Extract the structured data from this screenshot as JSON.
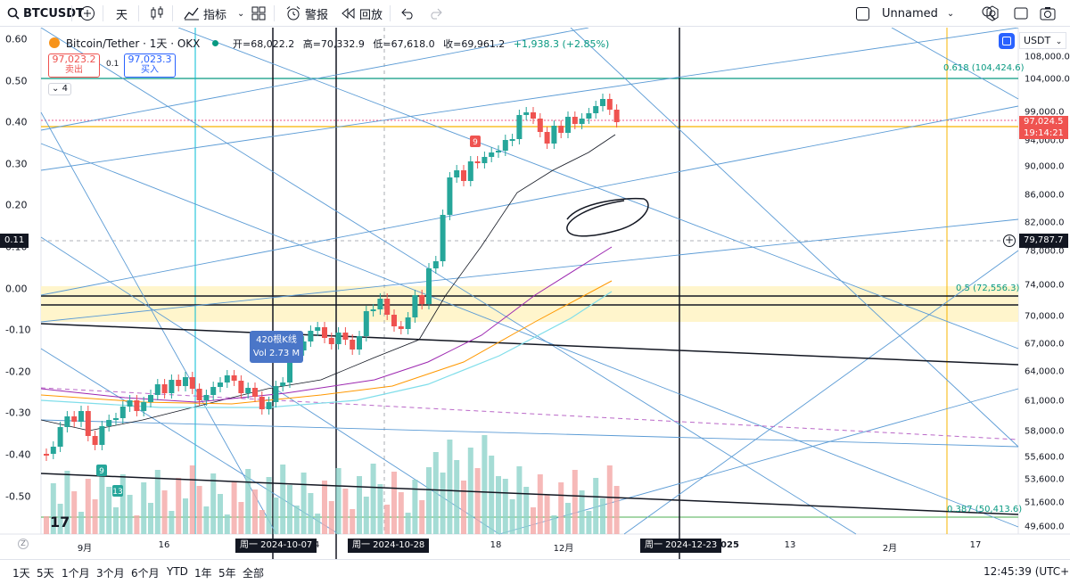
{
  "header": {
    "symbol": "BTCUSDT",
    "interval": "天",
    "indicators_label": "指标",
    "alert_label": "警报",
    "replay_label": "回放",
    "layout_name": "Unnamed"
  },
  "legend": {
    "title": "Bitcoin/Tether · 1天 · OKX",
    "open": "开=68,022.2",
    "high": "高=70,332.9",
    "low": "低=67,618.0",
    "close": "收=69,961.2",
    "change": "+1,938.3 (+2.85%)",
    "sell_price": "97,023.2",
    "sell_label": "卖出",
    "spread": "0.1",
    "buy_price": "97,023.3",
    "buy_label": "买入",
    "indicator_count": "4"
  },
  "tooltip": {
    "bars": "420根K线",
    "vol": "Vol 2.73 M"
  },
  "currency": "USDT",
  "left_axis": [
    "0.60",
    "0.50",
    "0.40",
    "0.30",
    "0.20",
    "0.10",
    "0.00",
    "-0.10",
    "-0.20",
    "-0.30",
    "-0.40",
    "-0.50"
  ],
  "left_cursor": "0.11",
  "right_axis": [
    "108,000.0",
    "104,000.0",
    "99,000.0",
    "94,000.0",
    "90,000.0",
    "86,000.0",
    "82,000.0",
    "78,000.0",
    "74,000.0",
    "70,000.0",
    "67,000.0",
    "64,000.0",
    "61,000.0",
    "58,000.0",
    "55,600.0",
    "53,600.0",
    "51,600.0",
    "49,600.0"
  ],
  "price_tag": {
    "price": "97,024.5",
    "countdown": "19:14:21"
  },
  "cursor_price": "79,787.7",
  "fib": {
    "f618": "0.618 (104,424.6)",
    "f05": "0.5 (72,556.3)",
    "f0387": "0.387 (50,413.6)"
  },
  "x_axis": [
    "9月",
    "16",
    "14",
    "18",
    "12月",
    "2025",
    "13",
    "2月",
    "17"
  ],
  "date_tags": [
    "周一 2024-10-07",
    "周一 2024-10-28",
    "周一 2024-12-23"
  ],
  "bottom": {
    "ranges": [
      "1天",
      "5天",
      "1个月",
      "3个月",
      "6个月",
      "YTD",
      "1年",
      "5年",
      "全部"
    ],
    "clock": "12:45:39 (UTC+8)"
  },
  "td_counts": [
    "9",
    "13",
    "9"
  ],
  "colors": {
    "up": "#26a69a",
    "down": "#ef5350",
    "accent": "#2962ff",
    "fib_green": "#089981",
    "gold": "#f7b500"
  },
  "chart_data": {
    "type": "candlestick",
    "note_series": "BTCUSDT daily OKX",
    "ylim": [
      49600,
      108000
    ],
    "last_close": 97024.5
  }
}
